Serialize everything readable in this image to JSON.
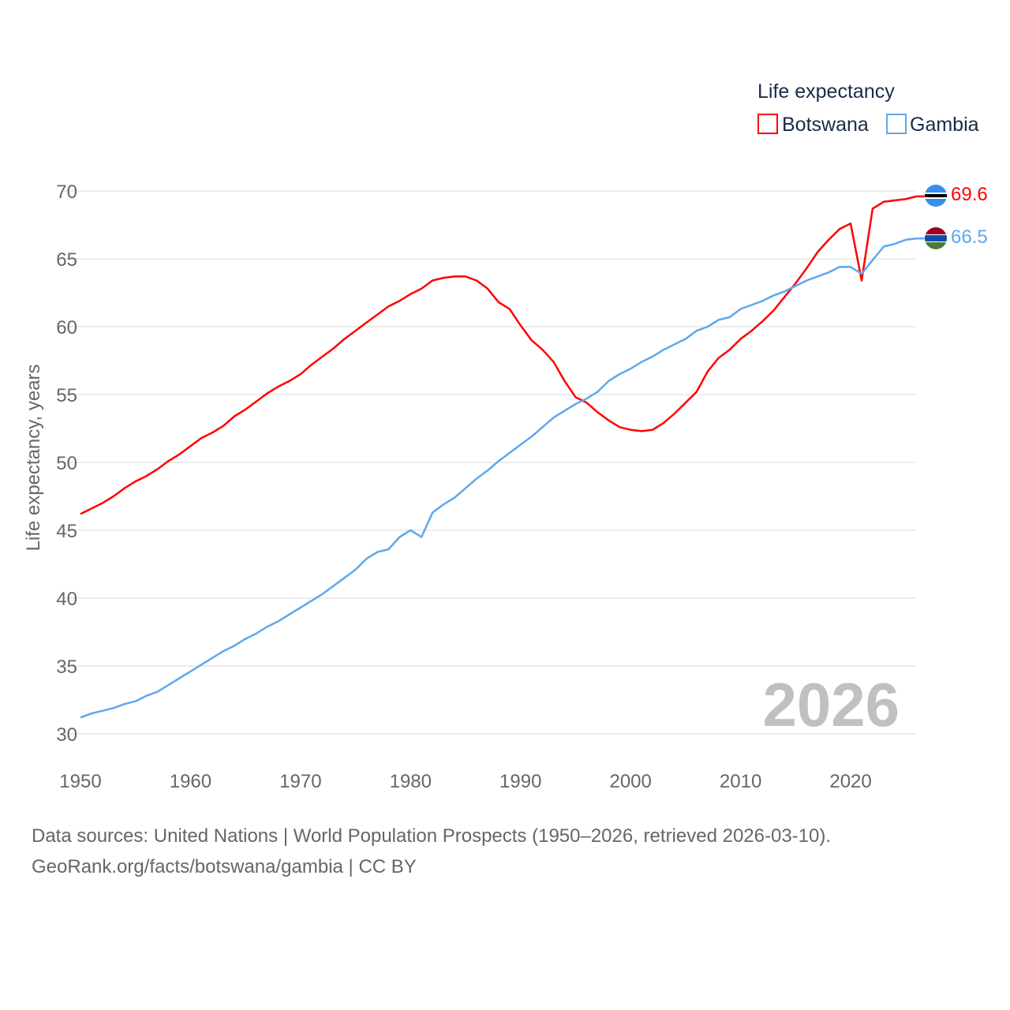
{
  "chart_data": {
    "type": "line",
    "title": "",
    "xlabel": "",
    "ylabel": "Life expectancy, years",
    "xlim": [
      1950,
      2026
    ],
    "ylim": [
      30,
      70
    ],
    "x_ticks": [
      "1950",
      "1960",
      "1970",
      "1980",
      "1990",
      "2000",
      "2010",
      "2020"
    ],
    "y_ticks": [
      "30",
      "35",
      "40",
      "45",
      "50",
      "55",
      "60",
      "65",
      "70"
    ],
    "grid": true,
    "legend_title": "Life expectancy",
    "legend_placement": "top-right",
    "year_watermark": "2026",
    "x": [
      1950,
      1951,
      1952,
      1953,
      1954,
      1955,
      1956,
      1957,
      1958,
      1959,
      1960,
      1961,
      1962,
      1963,
      1964,
      1965,
      1966,
      1967,
      1968,
      1969,
      1970,
      1971,
      1972,
      1973,
      1974,
      1975,
      1976,
      1977,
      1978,
      1979,
      1980,
      1981,
      1982,
      1983,
      1984,
      1985,
      1986,
      1987,
      1988,
      1989,
      1990,
      1991,
      1992,
      1993,
      1994,
      1995,
      1996,
      1997,
      1998,
      1999,
      2000,
      2001,
      2002,
      2003,
      2004,
      2005,
      2006,
      2007,
      2008,
      2009,
      2010,
      2011,
      2012,
      2013,
      2014,
      2015,
      2016,
      2017,
      2018,
      2019,
      2020,
      2021,
      2022,
      2023,
      2024,
      2025,
      2026
    ],
    "series": [
      {
        "name": "Botswana",
        "color": "#ff0000",
        "end_label": "69.6",
        "values": [
          46.2,
          46.6,
          47.0,
          47.5,
          48.1,
          48.6,
          49.0,
          49.5,
          50.1,
          50.6,
          51.2,
          51.8,
          52.2,
          52.7,
          53.4,
          53.9,
          54.5,
          55.1,
          55.6,
          56.0,
          56.5,
          57.2,
          57.8,
          58.4,
          59.1,
          59.7,
          60.3,
          60.9,
          61.5,
          61.9,
          62.4,
          62.8,
          63.4,
          63.6,
          63.7,
          63.7,
          63.4,
          62.8,
          61.8,
          61.3,
          60.1,
          59.0,
          58.3,
          57.4,
          56.0,
          54.8,
          54.4,
          53.7,
          53.1,
          52.6,
          52.4,
          52.3,
          52.4,
          52.9,
          53.6,
          54.4,
          55.2,
          56.7,
          57.7,
          58.3,
          59.1,
          59.7,
          60.4,
          61.2,
          62.2,
          63.2,
          64.3,
          65.5,
          66.4,
          67.2,
          67.6,
          63.4,
          68.7,
          69.2,
          69.3,
          69.4,
          69.6
        ]
      },
      {
        "name": "Gambia",
        "color": "#5ea8ec",
        "end_label": "66.5",
        "values": [
          31.2,
          31.5,
          31.7,
          31.9,
          32.2,
          32.4,
          32.8,
          33.1,
          33.6,
          34.1,
          34.6,
          35.1,
          35.6,
          36.1,
          36.5,
          37.0,
          37.4,
          37.9,
          38.3,
          38.8,
          39.3,
          39.8,
          40.3,
          40.9,
          41.5,
          42.1,
          42.9,
          43.4,
          43.6,
          44.5,
          45.0,
          44.5,
          46.3,
          46.9,
          47.4,
          48.1,
          48.8,
          49.4,
          50.1,
          50.7,
          51.3,
          51.9,
          52.6,
          53.3,
          53.8,
          54.3,
          54.7,
          55.2,
          56.0,
          56.5,
          56.9,
          57.4,
          57.8,
          58.3,
          58.7,
          59.1,
          59.7,
          60.0,
          60.5,
          60.7,
          61.3,
          61.6,
          61.9,
          62.3,
          62.6,
          63.0,
          63.4,
          63.7,
          64.0,
          64.4,
          64.4,
          63.9,
          64.9,
          65.9,
          66.1,
          66.4,
          66.5
        ]
      }
    ]
  },
  "legend": {
    "title": "Life expectancy",
    "items": [
      "Botswana",
      "Gambia"
    ]
  },
  "footer": {
    "line1": "Data sources: United Nations | World Population Prospects (1950–2026, retrieved 2026-03-10).",
    "line2": "GeoRank.org/facts/botswana/gambia | CC BY"
  }
}
